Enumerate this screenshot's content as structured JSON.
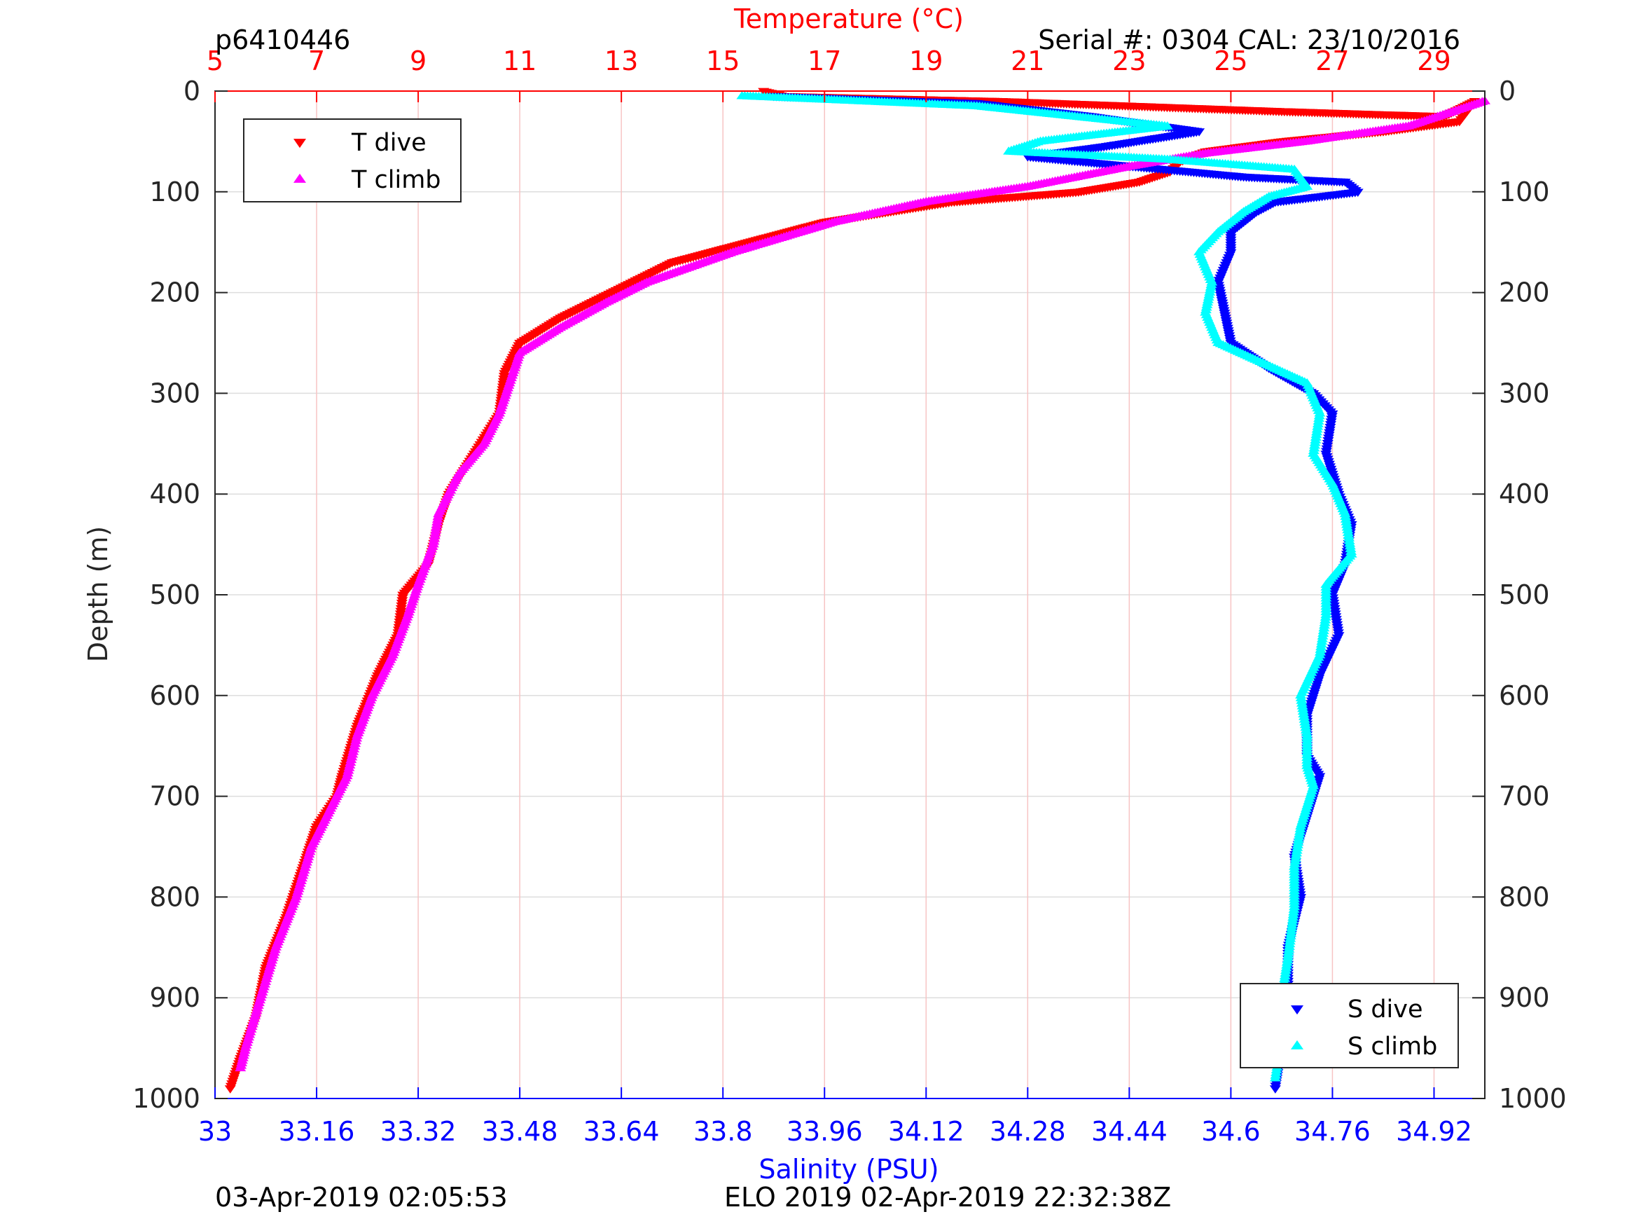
{
  "header": {
    "id_label": "p6410446",
    "serial_label": "Serial #: 0304  CAL: 23/10/2016"
  },
  "footer": {
    "left_label": "03-Apr-2019 02:05:53",
    "center_label": "ELO 2019 02-Apr-2019 22:32:38Z"
  },
  "colors": {
    "t_dive": "#ff0000",
    "t_climb": "#ff00ff",
    "s_dive": "#0000ff",
    "s_climb": "#00ffff",
    "temp_axis": "#ff0000",
    "sal_axis": "#0000ff"
  },
  "chart_data": {
    "type": "scatter",
    "top_axis": {
      "label": "Temperature (°C)",
      "range": [
        5,
        30
      ],
      "ticks": [
        5,
        7,
        9,
        11,
        13,
        15,
        17,
        19,
        21,
        23,
        25,
        27,
        29
      ],
      "tick_labels": [
        "5",
        "7",
        "9",
        "11",
        "13",
        "15",
        "17",
        "19",
        "21",
        "23",
        "25",
        "27",
        "29"
      ]
    },
    "bottom_axis": {
      "label": "Salinity (PSU)",
      "range": [
        33,
        35
      ],
      "ticks": [
        33,
        33.16,
        33.32,
        33.48,
        33.64,
        33.8,
        33.96,
        34.12,
        34.28,
        34.44,
        34.6,
        34.76,
        34.92
      ],
      "tick_labels": [
        "33",
        "33.16",
        "33.32",
        "33.48",
        "33.64",
        "33.8",
        "33.96",
        "34.12",
        "34.28",
        "34.44",
        "34.6",
        "34.76",
        "34.92"
      ]
    },
    "y_axis": {
      "label": "Depth (m)",
      "range": [
        0,
        1000
      ],
      "reversed": true,
      "ticks": [
        0,
        100,
        200,
        300,
        400,
        500,
        600,
        700,
        800,
        900,
        1000
      ],
      "tick_labels": [
        "0",
        "100",
        "200",
        "300",
        "400",
        "500",
        "600",
        "700",
        "800",
        "900",
        "1000"
      ]
    },
    "grid": true,
    "legends": [
      {
        "position": "top-left",
        "entries": [
          "T dive",
          "T climb"
        ]
      },
      {
        "position": "bottom-right",
        "entries": [
          "S dive",
          "S climb"
        ]
      }
    ],
    "series": [
      {
        "name": "T dive",
        "axis": "temperature",
        "marker": "triangle-down",
        "points": [
          [
            15.8,
            0
          ],
          [
            16.2,
            5
          ],
          [
            20.5,
            10
          ],
          [
            26,
            20
          ],
          [
            29.2,
            25
          ],
          [
            29.8,
            10
          ],
          [
            29.5,
            30
          ],
          [
            28,
            40
          ],
          [
            26,
            50
          ],
          [
            24.5,
            60
          ],
          [
            24,
            70
          ],
          [
            23.8,
            80
          ],
          [
            23.2,
            90
          ],
          [
            22,
            100
          ],
          [
            19.5,
            110
          ],
          [
            17,
            130
          ],
          [
            15.5,
            150
          ],
          [
            14,
            170
          ],
          [
            12.8,
            200
          ],
          [
            11.8,
            225
          ],
          [
            11,
            250
          ],
          [
            10.7,
            280
          ],
          [
            10.6,
            320
          ],
          [
            10.1,
            360
          ],
          [
            9.6,
            400
          ],
          [
            9.4,
            430
          ],
          [
            9.2,
            470
          ],
          [
            8.7,
            500
          ],
          [
            8.6,
            540
          ],
          [
            8.2,
            580
          ],
          [
            7.8,
            630
          ],
          [
            7.5,
            680
          ],
          [
            7.4,
            700
          ],
          [
            7,
            730
          ],
          [
            6.8,
            760
          ],
          [
            6.4,
            820
          ],
          [
            6,
            870
          ],
          [
            5.8,
            920
          ],
          [
            5.5,
            960
          ],
          [
            5.3,
            990
          ]
        ]
      },
      {
        "name": "T climb",
        "axis": "temperature",
        "marker": "triangle-up",
        "points": [
          [
            30,
            10
          ],
          [
            28.5,
            35
          ],
          [
            26.5,
            50
          ],
          [
            24.5,
            62
          ],
          [
            23,
            75
          ],
          [
            21,
            95
          ],
          [
            19,
            110
          ],
          [
            17.2,
            130
          ],
          [
            15.2,
            160
          ],
          [
            13.5,
            190
          ],
          [
            12.7,
            210
          ],
          [
            11.8,
            235
          ],
          [
            11,
            260
          ],
          [
            10.8,
            290
          ],
          [
            10.6,
            320
          ],
          [
            10.3,
            350
          ],
          [
            9.8,
            380
          ],
          [
            9.4,
            420
          ],
          [
            9.3,
            450
          ],
          [
            9,
            490
          ],
          [
            8.8,
            520
          ],
          [
            8.5,
            560
          ],
          [
            8.1,
            600
          ],
          [
            7.8,
            640
          ],
          [
            7.6,
            680
          ],
          [
            7.3,
            710
          ],
          [
            6.9,
            750
          ],
          [
            6.6,
            800
          ],
          [
            6.2,
            850
          ],
          [
            5.9,
            900
          ],
          [
            5.6,
            950
          ],
          [
            5.5,
            970
          ]
        ]
      },
      {
        "name": "S dive",
        "axis": "salinity",
        "marker": "triangle-down",
        "points": [
          [
            33.88,
            5
          ],
          [
            34.2,
            12
          ],
          [
            34.38,
            25
          ],
          [
            34.55,
            40
          ],
          [
            34.4,
            55
          ],
          [
            34.28,
            65
          ],
          [
            34.45,
            75
          ],
          [
            34.62,
            85
          ],
          [
            34.78,
            90
          ],
          [
            34.8,
            100
          ],
          [
            34.67,
            110
          ],
          [
            34.64,
            120
          ],
          [
            34.6,
            140
          ],
          [
            34.6,
            160
          ],
          [
            34.58,
            190
          ],
          [
            34.59,
            220
          ],
          [
            34.6,
            250
          ],
          [
            34.66,
            275
          ],
          [
            34.73,
            300
          ],
          [
            34.76,
            320
          ],
          [
            34.75,
            360
          ],
          [
            34.77,
            400
          ],
          [
            34.79,
            430
          ],
          [
            34.78,
            470
          ],
          [
            34.76,
            500
          ],
          [
            34.77,
            540
          ],
          [
            34.74,
            580
          ],
          [
            34.72,
            620
          ],
          [
            34.72,
            660
          ],
          [
            34.74,
            680
          ],
          [
            34.72,
            720
          ],
          [
            34.7,
            760
          ],
          [
            34.71,
            800
          ],
          [
            34.69,
            850
          ],
          [
            34.69,
            900
          ],
          [
            34.68,
            950
          ],
          [
            34.67,
            990
          ]
        ]
      },
      {
        "name": "S climb",
        "axis": "salinity",
        "marker": "triangle-up",
        "points": [
          [
            33.83,
            5
          ],
          [
            34.2,
            15
          ],
          [
            34.35,
            25
          ],
          [
            34.5,
            35
          ],
          [
            34.3,
            50
          ],
          [
            34.25,
            60
          ],
          [
            34.5,
            68
          ],
          [
            34.7,
            78
          ],
          [
            34.72,
            95
          ],
          [
            34.66,
            105
          ],
          [
            34.62,
            120
          ],
          [
            34.58,
            140
          ],
          [
            34.55,
            160
          ],
          [
            34.57,
            190
          ],
          [
            34.56,
            220
          ],
          [
            34.58,
            250
          ],
          [
            34.65,
            270
          ],
          [
            34.72,
            290
          ],
          [
            34.74,
            320
          ],
          [
            34.73,
            360
          ],
          [
            34.76,
            390
          ],
          [
            34.78,
            420
          ],
          [
            34.79,
            460
          ],
          [
            34.75,
            490
          ],
          [
            34.75,
            520
          ],
          [
            34.74,
            560
          ],
          [
            34.71,
            600
          ],
          [
            34.72,
            640
          ],
          [
            34.72,
            670
          ],
          [
            34.73,
            690
          ],
          [
            34.71,
            730
          ],
          [
            34.7,
            770
          ],
          [
            34.7,
            810
          ],
          [
            34.69,
            860
          ],
          [
            34.68,
            900
          ],
          [
            34.68,
            940
          ],
          [
            34.67,
            980
          ]
        ]
      }
    ]
  }
}
